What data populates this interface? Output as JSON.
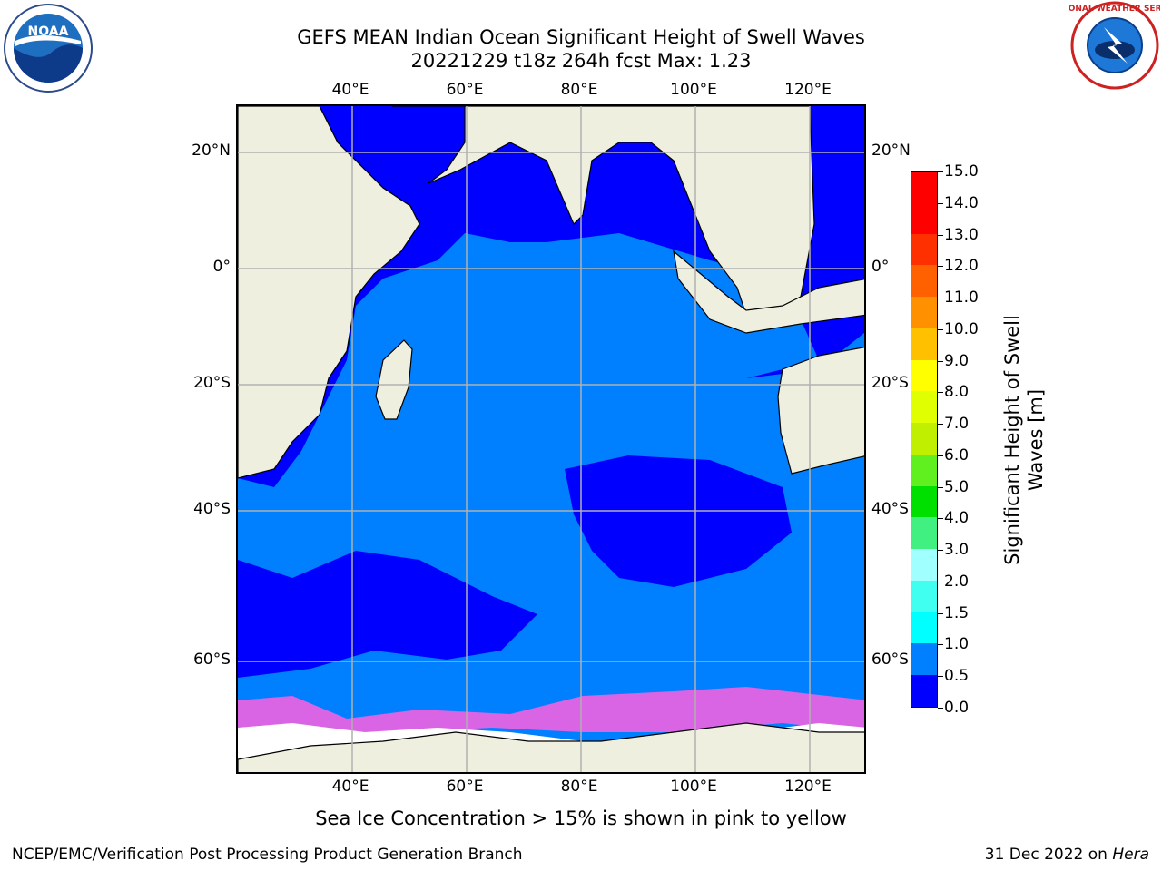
{
  "header": {
    "title_line1": "GEFS MEAN Indian Ocean Significant Height of Swell Waves",
    "title_line2": "20221229 t18z 264h fcst   Max: 1.23"
  },
  "map": {
    "lon_ticks": [
      "40°E",
      "60°E",
      "80°E",
      "100°E",
      "120°E"
    ],
    "lat_ticks": [
      "20°N",
      "0°",
      "20°S",
      "40°S",
      "60°S"
    ],
    "lon_range": [
      20,
      130
    ],
    "lat_range": [
      -74,
      28
    ],
    "gridlines": true,
    "colors": {
      "ocean_low": "#0000ff",
      "ocean_mid": "#0080ff",
      "land": "#efefdf",
      "ice_edge": "#ff60e0",
      "grid": "#b0b0b0"
    }
  },
  "colorbar": {
    "label": "Significant Height of Swell Waves [m]",
    "ticks": [
      "0.0",
      "0.5",
      "1.0",
      "1.5",
      "2.0",
      "3.0",
      "4.0",
      "5.0",
      "6.0",
      "7.0",
      "8.0",
      "9.0",
      "10.0",
      "11.0",
      "12.0",
      "13.0",
      "14.0",
      "15.0"
    ],
    "colors": [
      "#0000ff",
      "#0080ff",
      "#00ffff",
      "#40fff0",
      "#a0ffff",
      "#40f080",
      "#00e000",
      "#60f020",
      "#c0f000",
      "#e0ff00",
      "#ffff00",
      "#ffc000",
      "#ff9000",
      "#ff6000",
      "#ff3000",
      "#ff0000",
      "#ff0000"
    ]
  },
  "notes": {
    "ice_note": "Sea Ice Concentration > 15% is shown in pink to yellow"
  },
  "footer": {
    "left": "NCEP/EMC/Verification Post Processing Product Generation Branch",
    "right_date": "31 Dec 2022 on ",
    "right_host": "Hera"
  },
  "logos": {
    "noaa_text": "NOAA",
    "nws_text": "NATIONAL WEATHER SERVICE"
  }
}
